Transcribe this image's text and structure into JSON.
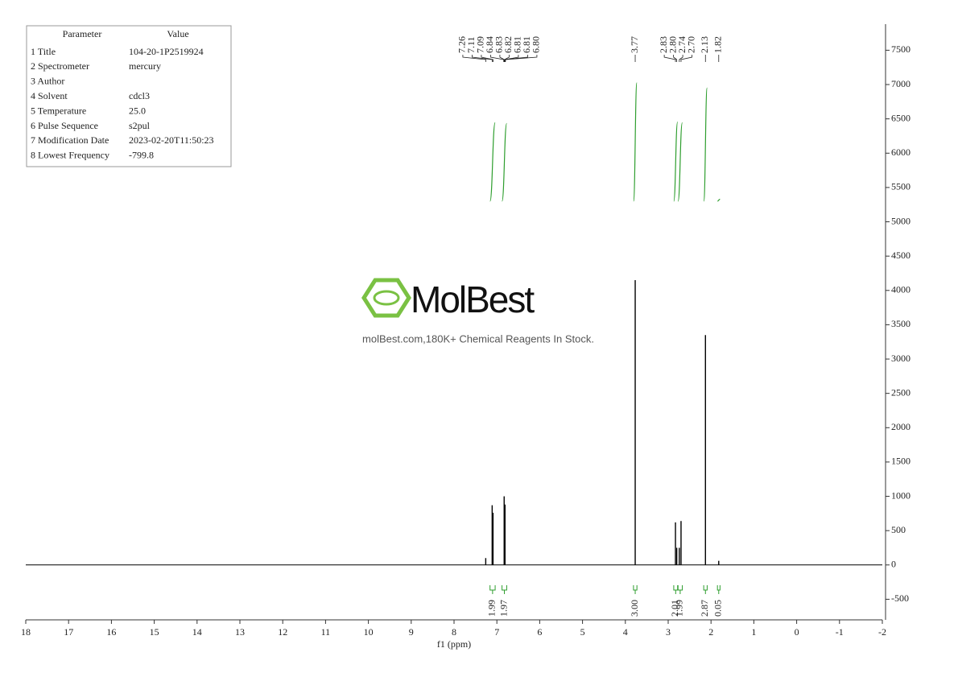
{
  "parameters": {
    "header": [
      "Parameter",
      "Value"
    ],
    "rows": [
      [
        "1 Title",
        "104-20-1P2519924"
      ],
      [
        "2 Spectrometer",
        "mercury"
      ],
      [
        "3 Author"
      ],
      [
        "4 Solvent",
        "cdcl3"
      ],
      [
        "5 Temperature",
        "25.0"
      ],
      [
        "6 Pulse Sequence",
        "s2pul"
      ],
      [
        "7 Modification Date",
        "2023-02-20T11:50:23"
      ],
      [
        "8 Lowest Frequency",
        "-799.8"
      ]
    ]
  },
  "watermark": {
    "brand": "MolBest",
    "tagline": "molBest.com,180K+ Chemical Reagents In Stock."
  },
  "chart_data": {
    "type": "nmr",
    "xlabel": "f1 (ppm)",
    "xlim": [
      18,
      -2
    ],
    "xticks": [
      18,
      17,
      16,
      15,
      14,
      13,
      12,
      11,
      10,
      9,
      8,
      7,
      6,
      5,
      4,
      3,
      2,
      1,
      0,
      -1,
      -2
    ],
    "ylim": [
      -800,
      7880
    ],
    "yticks": [
      -500,
      0,
      500,
      1000,
      1500,
      2000,
      2500,
      3000,
      3500,
      4000,
      4500,
      5000,
      5500,
      6000,
      6500,
      7000,
      7500
    ],
    "color": "#000000",
    "integral_color": "#2e9e2e",
    "peaks": {
      "x": [
        7.26,
        7.11,
        7.09,
        6.83,
        6.81,
        3.77,
        2.83,
        2.8,
        2.74,
        2.7,
        2.13,
        1.82
      ],
      "values": [
        100,
        870,
        760,
        1000,
        880,
        4150,
        620,
        250,
        250,
        640,
        3350,
        60
      ]
    },
    "peak_labels": {
      "values": [
        7.26,
        7.11,
        7.09,
        6.84,
        6.83,
        6.82,
        6.81,
        6.81,
        6.8,
        3.77,
        2.83,
        2.8,
        2.74,
        2.7,
        2.13,
        1.82
      ],
      "value_labels": [
        "7.26",
        "7.11",
        "7.09",
        "6.84",
        "6.83",
        "6.82",
        "6.81",
        "6.81",
        "6.80",
        "3.77",
        "2.83",
        "2.80",
        "2.74",
        "2.70",
        "2.13",
        "1.82"
      ]
    },
    "integrals": {
      "ranges": [
        [
          7.16,
          7.04
        ],
        [
          6.88,
          6.77
        ],
        [
          3.81,
          3.73
        ],
        [
          2.87,
          2.78
        ],
        [
          2.77,
          2.67
        ],
        [
          2.17,
          2.09
        ],
        [
          1.85,
          1.79
        ]
      ],
      "values": [
        1.99,
        1.97,
        3,
        2.01,
        1.99,
        2.87,
        0.05
      ],
      "value_labels": [
        "1.99",
        "1.97",
        "3.00",
        "2.01",
        "1.99",
        "2.87",
        "0.05"
      ]
    }
  }
}
